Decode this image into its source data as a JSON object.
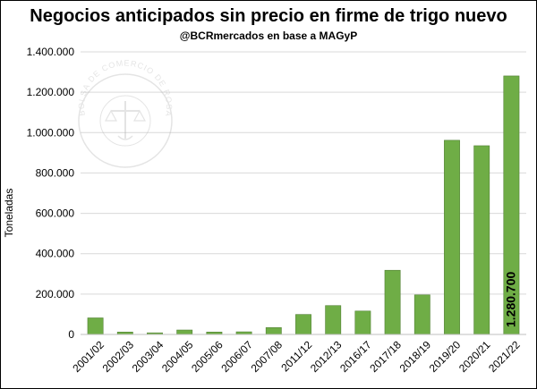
{
  "chart_data": {
    "type": "bar",
    "title": "Negocios anticipados sin precio en firme de trigo nuevo",
    "subtitle": "@BCRmercados en base a MAGyP",
    "ylabel": "Toneladas",
    "xlabel": "",
    "categories": [
      "2001/02",
      "2002/03",
      "2003/04",
      "2004/05",
      "2005/06",
      "2006/07",
      "2007/08",
      "2011/12",
      "2012/13",
      "2016/17",
      "2017/18",
      "2018/19",
      "2019/20",
      "2020/21",
      "2021/22"
    ],
    "values": [
      82000,
      12000,
      8000,
      22000,
      12000,
      13000,
      34000,
      99000,
      143000,
      116000,
      318000,
      196000,
      962000,
      935000,
      1280700
    ],
    "ylim": [
      0,
      1400000
    ],
    "yticks": [
      0,
      200000,
      400000,
      600000,
      800000,
      1000000,
      1200000,
      1400000
    ],
    "ytick_labels": [
      "0",
      "200.000",
      "400.000",
      "600.000",
      "800.000",
      "1.000.000",
      "1.200.000",
      "1.400.000"
    ],
    "data_labels": [
      {
        "index": 14,
        "text": "1.280.700"
      }
    ],
    "grid": true,
    "legend": "none",
    "bar_color": "#6fad46",
    "bar_edge_color": "#538135",
    "grid_color": "#d9d9d9"
  },
  "watermark": {
    "text": "BOLSA DE COMERCIO DE ROSARIO"
  }
}
